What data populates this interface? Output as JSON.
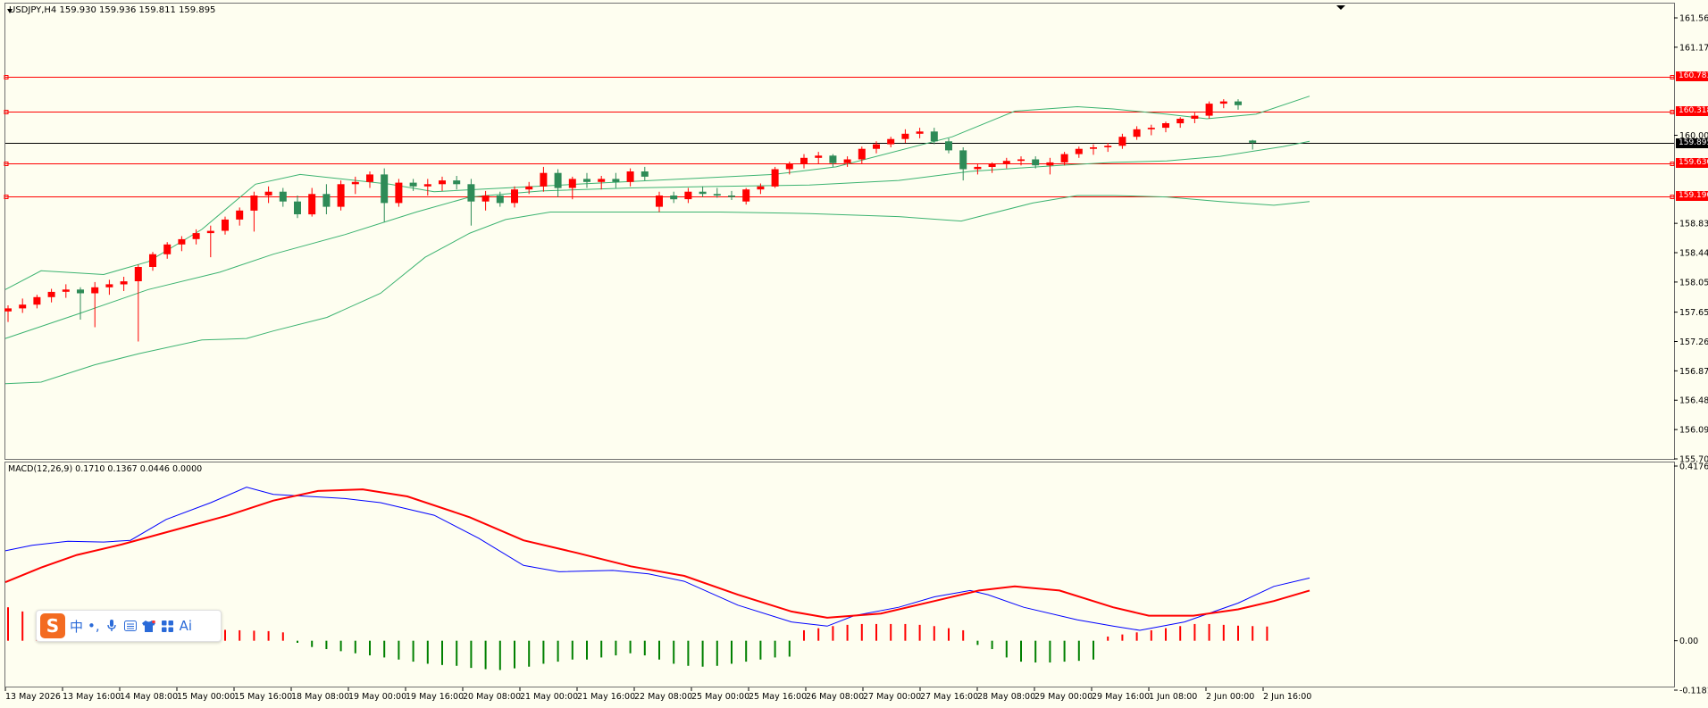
{
  "symbol_caption": "USDJPY,H4  159.930 159.936 159.811 159.895",
  "macd_caption": "MACD(12,26,9) 0.1710 0.1367 0.0446 0.0000",
  "ime_toolbar": {
    "logo": "S",
    "items": [
      "中",
      "•,",
      "mic-icon",
      "keyboard-icon",
      "shirt-icon",
      "grid-icon",
      "Ai"
    ]
  },
  "colors": {
    "background": "#fefef0",
    "bull": "#2e8b57",
    "bear": "#ff0000",
    "bands": "#3cb371",
    "levels": "#ff0000",
    "macd_line": "#0000ff",
    "signal_line": "#ff0000",
    "hist_pos": "#ff0000",
    "hist_neg": "#008000",
    "current_price_line": "#000000"
  },
  "chart_data": [
    {
      "type": "candlestick",
      "symbol": "USDJPY",
      "timeframe": "H4",
      "title": "USDJPY,H4",
      "ohlc_readout": [
        159.93,
        159.936,
        159.811,
        159.895
      ],
      "y_ticks": [
        "161.560",
        "161.170",
        "160.783",
        "160.318",
        "160.000",
        "159.895",
        "159.630",
        "159.190",
        "158.830",
        "158.440",
        "158.050",
        "157.650",
        "157.260",
        "156.870",
        "156.480",
        "156.090",
        "155.700"
      ],
      "ylim": [
        155.7,
        161.75
      ],
      "x_ticks": [
        "13 May 2026",
        "13 May 16:00",
        "14 May 08:00",
        "15 May 00:00",
        "15 May 16:00",
        "18 May 08:00",
        "19 May 00:00",
        "19 May 16:00",
        "20 May 08:00",
        "21 May 00:00",
        "21 May 16:00",
        "22 May 08:00",
        "25 May 00:00",
        "25 May 16:00",
        "26 May 08:00",
        "27 May 00:00",
        "27 May 16:00",
        "28 May 08:00",
        "29 May 00:00",
        "29 May 16:00",
        "1 Jun 08:00",
        "2 Jun 00:00",
        "2 Jun 16:00"
      ],
      "horizontal_levels": [
        {
          "price": 160.783,
          "label": "160.783",
          "color": "#ff0000"
        },
        {
          "price": 160.318,
          "label": "160.318",
          "color": "#ff0000"
        },
        {
          "price": 159.63,
          "label": "159.630",
          "color": "#ff0000"
        },
        {
          "price": 159.19,
          "label": "159.190",
          "color": "#ff0000"
        }
      ],
      "current_price": {
        "price": 159.895,
        "label": "159.895"
      },
      "candles": [
        [
          157.66,
          157.74,
          157.52,
          157.7
        ],
        [
          157.7,
          157.83,
          157.64,
          157.75
        ],
        [
          157.75,
          157.88,
          157.7,
          157.85
        ],
        [
          157.85,
          157.96,
          157.78,
          157.92
        ],
        [
          157.92,
          158.02,
          157.84,
          157.95
        ],
        [
          157.95,
          157.98,
          157.55,
          157.9
        ],
        [
          157.9,
          158.05,
          157.45,
          157.98
        ],
        [
          157.98,
          158.08,
          157.88,
          158.02
        ],
        [
          158.02,
          158.12,
          157.93,
          158.06
        ],
        [
          158.06,
          158.28,
          157.26,
          158.25
        ],
        [
          158.25,
          158.45,
          158.2,
          158.42
        ],
        [
          158.42,
          158.58,
          158.36,
          158.55
        ],
        [
          158.55,
          158.66,
          158.46,
          158.62
        ],
        [
          158.62,
          158.75,
          158.55,
          158.7
        ],
        [
          158.7,
          158.8,
          158.38,
          158.73
        ],
        [
          158.73,
          158.92,
          158.68,
          158.88
        ],
        [
          158.88,
          159.04,
          158.8,
          159.0
        ],
        [
          159.0,
          159.25,
          158.72,
          159.2
        ],
        [
          159.2,
          159.32,
          159.1,
          159.25
        ],
        [
          159.25,
          159.3,
          159.05,
          159.12
        ],
        [
          159.12,
          159.2,
          158.9,
          158.95
        ],
        [
          158.95,
          159.3,
          158.92,
          159.22
        ],
        [
          159.22,
          159.35,
          158.95,
          159.05
        ],
        [
          159.05,
          159.4,
          159.0,
          159.35
        ],
        [
          159.35,
          159.45,
          159.22,
          159.38
        ],
        [
          159.38,
          159.52,
          159.3,
          159.48
        ],
        [
          159.48,
          159.56,
          158.85,
          159.1
        ],
        [
          159.1,
          159.42,
          159.05,
          159.37
        ],
        [
          159.37,
          159.42,
          159.26,
          159.32
        ],
        [
          159.32,
          159.42,
          159.2,
          159.35
        ],
        [
          159.35,
          159.45,
          159.26,
          159.4
        ],
        [
          159.4,
          159.46,
          159.28,
          159.35
        ],
        [
          159.35,
          159.42,
          158.8,
          159.12
        ],
        [
          159.12,
          159.26,
          159.0,
          159.2
        ],
        [
          159.2,
          159.25,
          159.05,
          159.1
        ],
        [
          159.1,
          159.32,
          159.04,
          159.28
        ],
        [
          159.28,
          159.38,
          159.22,
          159.32
        ],
        [
          159.32,
          159.58,
          159.25,
          159.5
        ],
        [
          159.5,
          159.55,
          159.18,
          159.3
        ],
        [
          159.3,
          159.45,
          159.15,
          159.42
        ],
        [
          159.42,
          159.5,
          159.3,
          159.38
        ],
        [
          159.38,
          159.46,
          159.28,
          159.42
        ],
        [
          159.42,
          159.5,
          159.3,
          159.38
        ],
        [
          159.38,
          159.56,
          159.32,
          159.52
        ],
        [
          159.52,
          159.58,
          159.4,
          159.45
        ],
        [
          159.05,
          159.25,
          158.98,
          159.2
        ],
        [
          159.2,
          159.25,
          159.1,
          159.15
        ],
        [
          159.15,
          159.3,
          159.1,
          159.25
        ],
        [
          159.25,
          159.32,
          159.18,
          159.22
        ],
        [
          159.22,
          159.3,
          159.17,
          159.2
        ],
        [
          159.2,
          159.26,
          159.14,
          159.18
        ],
        [
          159.12,
          159.3,
          159.08,
          159.28
        ],
        [
          159.28,
          159.36,
          159.22,
          159.32
        ],
        [
          159.32,
          159.58,
          159.3,
          159.55
        ],
        [
          159.55,
          159.65,
          159.48,
          159.62
        ],
        [
          159.62,
          159.75,
          159.56,
          159.7
        ],
        [
          159.7,
          159.78,
          159.62,
          159.73
        ],
        [
          159.73,
          159.75,
          159.58,
          159.63
        ],
        [
          159.63,
          159.72,
          159.58,
          159.68
        ],
        [
          159.68,
          159.85,
          159.62,
          159.82
        ],
        [
          159.82,
          159.92,
          159.76,
          159.88
        ],
        [
          159.88,
          159.98,
          159.84,
          159.95
        ],
        [
          159.95,
          160.08,
          159.9,
          160.02
        ],
        [
          160.02,
          160.1,
          159.96,
          160.05
        ],
        [
          160.05,
          160.1,
          159.88,
          159.92
        ],
        [
          159.92,
          159.96,
          159.76,
          159.8
        ],
        [
          159.8,
          159.84,
          159.4,
          159.55
        ],
        [
          159.55,
          159.62,
          159.48,
          159.58
        ],
        [
          159.58,
          159.64,
          159.5,
          159.62
        ],
        [
          159.62,
          159.7,
          159.56,
          159.66
        ],
        [
          159.66,
          159.72,
          159.6,
          159.68
        ],
        [
          159.68,
          159.72,
          159.56,
          159.6
        ],
        [
          159.6,
          159.7,
          159.48,
          159.64
        ],
        [
          159.64,
          159.78,
          159.6,
          159.75
        ],
        [
          159.75,
          159.85,
          159.7,
          159.82
        ],
        [
          159.82,
          159.88,
          159.74,
          159.84
        ],
        [
          159.84,
          159.9,
          159.78,
          159.86
        ],
        [
          159.86,
          160.02,
          159.82,
          159.98
        ],
        [
          159.98,
          160.12,
          159.94,
          160.08
        ],
        [
          160.08,
          160.14,
          160.0,
          160.1
        ],
        [
          160.1,
          160.18,
          160.04,
          160.16
        ],
        [
          160.16,
          160.24,
          160.1,
          160.22
        ],
        [
          160.22,
          160.3,
          160.16,
          160.26
        ],
        [
          160.26,
          160.45,
          160.22,
          160.42
        ],
        [
          160.42,
          160.48,
          160.36,
          160.45
        ],
        [
          160.45,
          160.48,
          160.34,
          160.4
        ],
        [
          159.93,
          159.94,
          159.81,
          159.9
        ]
      ],
      "bollinger": {
        "upper": [
          [
            0,
            157.95
          ],
          [
            40,
            158.2
          ],
          [
            110,
            158.15
          ],
          [
            160,
            158.32
          ],
          [
            220,
            158.75
          ],
          [
            280,
            159.35
          ],
          [
            330,
            159.48
          ],
          [
            430,
            159.35
          ],
          [
            480,
            159.25
          ],
          [
            560,
            159.3
          ],
          [
            640,
            159.35
          ],
          [
            760,
            159.42
          ],
          [
            860,
            159.48
          ],
          [
            930,
            159.58
          ],
          [
            1060,
            159.98
          ],
          [
            1130,
            160.32
          ],
          [
            1200,
            160.38
          ],
          [
            1240,
            160.35
          ],
          [
            1300,
            160.28
          ],
          [
            1345,
            160.22
          ],
          [
            1400,
            160.28
          ],
          [
            1460,
            160.52
          ]
        ],
        "middle": [
          [
            0,
            157.3
          ],
          [
            80,
            157.62
          ],
          [
            160,
            157.95
          ],
          [
            240,
            158.18
          ],
          [
            300,
            158.42
          ],
          [
            380,
            158.68
          ],
          [
            460,
            158.98
          ],
          [
            520,
            159.18
          ],
          [
            600,
            159.26
          ],
          [
            700,
            159.3
          ],
          [
            800,
            159.32
          ],
          [
            900,
            159.34
          ],
          [
            1000,
            159.4
          ],
          [
            1080,
            159.52
          ],
          [
            1180,
            159.6
          ],
          [
            1240,
            159.64
          ],
          [
            1300,
            159.66
          ],
          [
            1360,
            159.72
          ],
          [
            1430,
            159.85
          ],
          [
            1460,
            159.92
          ]
        ],
        "lower": [
          [
            0,
            156.7
          ],
          [
            40,
            156.72
          ],
          [
            100,
            156.95
          ],
          [
            150,
            157.1
          ],
          [
            220,
            157.28
          ],
          [
            270,
            157.3
          ],
          [
            300,
            157.4
          ],
          [
            360,
            157.58
          ],
          [
            420,
            157.9
          ],
          [
            470,
            158.38
          ],
          [
            520,
            158.7
          ],
          [
            560,
            158.88
          ],
          [
            610,
            158.98
          ],
          [
            700,
            158.98
          ],
          [
            800,
            158.98
          ],
          [
            900,
            158.96
          ],
          [
            1000,
            158.92
          ],
          [
            1070,
            158.86
          ],
          [
            1150,
            159.1
          ],
          [
            1200,
            159.2
          ],
          [
            1240,
            159.2
          ],
          [
            1300,
            159.18
          ],
          [
            1360,
            159.12
          ],
          [
            1420,
            159.07
          ],
          [
            1460,
            159.12
          ]
        ]
      }
    },
    {
      "type": "line+bar",
      "title": "MACD(12,26,9)",
      "values_readout": [
        0.171,
        0.1367,
        0.0446,
        0.0
      ],
      "y_ticks": [
        "0.4176",
        "0.00",
        "-0.1181"
      ],
      "ylim": [
        -0.1181,
        0.4176
      ],
      "macd": [
        [
          0,
          0.215
        ],
        [
          30,
          0.228
        ],
        [
          70,
          0.238
        ],
        [
          110,
          0.236
        ],
        [
          140,
          0.24
        ],
        [
          180,
          0.29
        ],
        [
          230,
          0.33
        ],
        [
          270,
          0.367
        ],
        [
          300,
          0.35
        ],
        [
          340,
          0.345
        ],
        [
          380,
          0.34
        ],
        [
          420,
          0.33
        ],
        [
          480,
          0.3
        ],
        [
          530,
          0.245
        ],
        [
          580,
          0.18
        ],
        [
          620,
          0.165
        ],
        [
          680,
          0.168
        ],
        [
          720,
          0.16
        ],
        [
          760,
          0.142
        ],
        [
          820,
          0.085
        ],
        [
          880,
          0.045
        ],
        [
          920,
          0.035
        ],
        [
          950,
          0.06
        ],
        [
          1000,
          0.08
        ],
        [
          1040,
          0.105
        ],
        [
          1080,
          0.12
        ],
        [
          1100,
          0.11
        ],
        [
          1140,
          0.08
        ],
        [
          1200,
          0.05
        ],
        [
          1240,
          0.035
        ],
        [
          1270,
          0.025
        ],
        [
          1320,
          0.045
        ],
        [
          1380,
          0.09
        ],
        [
          1420,
          0.13
        ],
        [
          1460,
          0.15
        ]
      ],
      "signal": [
        [
          0,
          0.14
        ],
        [
          40,
          0.175
        ],
        [
          80,
          0.205
        ],
        [
          130,
          0.23
        ],
        [
          190,
          0.265
        ],
        [
          250,
          0.3
        ],
        [
          300,
          0.335
        ],
        [
          350,
          0.358
        ],
        [
          400,
          0.362
        ],
        [
          450,
          0.345
        ],
        [
          520,
          0.295
        ],
        [
          580,
          0.24
        ],
        [
          640,
          0.21
        ],
        [
          700,
          0.178
        ],
        [
          760,
          0.155
        ],
        [
          820,
          0.11
        ],
        [
          880,
          0.07
        ],
        [
          920,
          0.055
        ],
        [
          980,
          0.065
        ],
        [
          1040,
          0.095
        ],
        [
          1090,
          0.12
        ],
        [
          1130,
          0.13
        ],
        [
          1180,
          0.12
        ],
        [
          1240,
          0.08
        ],
        [
          1280,
          0.06
        ],
        [
          1330,
          0.06
        ],
        [
          1380,
          0.075
        ],
        [
          1420,
          0.095
        ],
        [
          1460,
          0.12
        ]
      ],
      "histogram": [
        0.08,
        0.07,
        0.065,
        0.06,
        0.055,
        0.05,
        0.045,
        0.04,
        0.04,
        0.038,
        0.035,
        0.032,
        0.03,
        0.028,
        0.027,
        0.026,
        0.025,
        0.024,
        0.023,
        0.02,
        -0.005,
        -0.015,
        -0.02,
        -0.025,
        -0.03,
        -0.035,
        -0.04,
        -0.045,
        -0.05,
        -0.055,
        -0.058,
        -0.06,
        -0.065,
        -0.068,
        -0.07,
        -0.066,
        -0.062,
        -0.055,
        -0.05,
        -0.045,
        -0.045,
        -0.04,
        -0.035,
        -0.03,
        -0.035,
        -0.045,
        -0.055,
        -0.06,
        -0.062,
        -0.06,
        -0.055,
        -0.05,
        -0.045,
        -0.04,
        -0.038,
        0.025,
        0.03,
        0.035,
        0.038,
        0.04,
        0.04,
        0.04,
        0.04,
        0.038,
        0.035,
        0.03,
        0.025,
        -0.01,
        -0.02,
        -0.04,
        -0.05,
        -0.052,
        -0.052,
        -0.05,
        -0.048,
        -0.045,
        0.01,
        0.015,
        0.02,
        0.025,
        0.03,
        0.035,
        0.04,
        0.04,
        0.038,
        0.036,
        0.035,
        0.034
      ]
    }
  ]
}
